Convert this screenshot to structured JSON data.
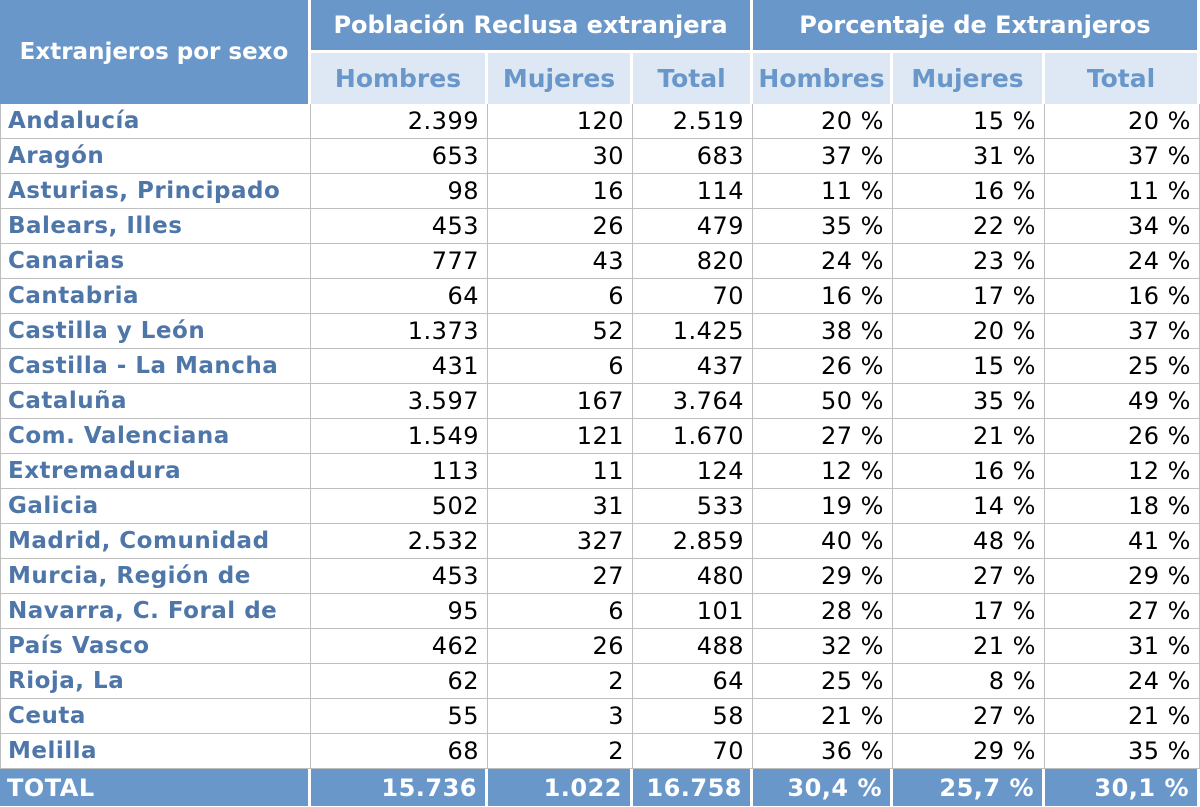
{
  "header": {
    "corner": "Extranjeros por sexo",
    "group1": "Población Reclusa extranjera",
    "group2": "Porcentaje de Extranjeros",
    "sub": [
      "Hombres",
      "Mujeres",
      "Total",
      "Hombres",
      "Mujeres",
      "Total"
    ]
  },
  "rows": [
    {
      "region": "Andalucía",
      "values": [
        "2.399",
        "120",
        "2.519",
        "20 %",
        "15 %",
        "20 %"
      ]
    },
    {
      "region": "Aragón",
      "values": [
        "653",
        "30",
        "683",
        "37 %",
        "31 %",
        "37 %"
      ]
    },
    {
      "region": "Asturias, Principado",
      "values": [
        "98",
        "16",
        "114",
        "11 %",
        "16 %",
        "11 %"
      ]
    },
    {
      "region": "Balears, Illes",
      "values": [
        "453",
        "26",
        "479",
        "35 %",
        "22 %",
        "34 %"
      ]
    },
    {
      "region": "Canarias",
      "values": [
        "777",
        "43",
        "820",
        "24 %",
        "23 %",
        "24 %"
      ]
    },
    {
      "region": "Cantabria",
      "values": [
        "64",
        "6",
        "70",
        "16 %",
        "17 %",
        "16 %"
      ]
    },
    {
      "region": "Castilla y León",
      "values": [
        "1.373",
        "52",
        "1.425",
        "38 %",
        "20 %",
        "37 %"
      ]
    },
    {
      "region": "Castilla - La Mancha",
      "values": [
        "431",
        "6",
        "437",
        "26 %",
        "15 %",
        "25 %"
      ]
    },
    {
      "region": "Cataluña",
      "values": [
        "3.597",
        "167",
        "3.764",
        "50 %",
        "35 %",
        "49 %"
      ]
    },
    {
      "region": "Com. Valenciana",
      "values": [
        "1.549",
        "121",
        "1.670",
        "27 %",
        "21 %",
        "26 %"
      ]
    },
    {
      "region": "Extremadura",
      "values": [
        "113",
        "11",
        "124",
        "12 %",
        "16 %",
        "12 %"
      ]
    },
    {
      "region": "Galicia",
      "values": [
        "502",
        "31",
        "533",
        "19 %",
        "14 %",
        "18 %"
      ]
    },
    {
      "region": "Madrid, Comunidad",
      "values": [
        "2.532",
        "327",
        "2.859",
        "40 %",
        "48 %",
        "41 %"
      ]
    },
    {
      "region": "Murcia, Región de",
      "values": [
        "453",
        "27",
        "480",
        "29 %",
        "27 %",
        "29 %"
      ]
    },
    {
      "region": "Navarra, C. Foral de",
      "values": [
        "95",
        "6",
        "101",
        "28 %",
        "17 %",
        "27 %"
      ]
    },
    {
      "region": "País Vasco",
      "values": [
        "462",
        "26",
        "488",
        "32 %",
        "21 %",
        "31 %"
      ]
    },
    {
      "region": "Rioja, La",
      "values": [
        "62",
        "2",
        "64",
        "25 %",
        "8 %",
        "24 %"
      ]
    },
    {
      "region": "Ceuta",
      "values": [
        "55",
        "3",
        "58",
        "21 %",
        "27 %",
        "21 %"
      ]
    },
    {
      "region": "Melilla",
      "values": [
        "68",
        "2",
        "70",
        "36 %",
        "29 %",
        "35 %"
      ]
    }
  ],
  "total": {
    "label": "TOTAL",
    "values": [
      "15.736",
      "1.022",
      "16.758",
      "30,4 %",
      "25,7 %",
      "30,1 %"
    ]
  },
  "colors": {
    "header_blue": "#6a97c9",
    "subheader_bg": "#dde8f4",
    "region_text": "#4f76a8"
  }
}
